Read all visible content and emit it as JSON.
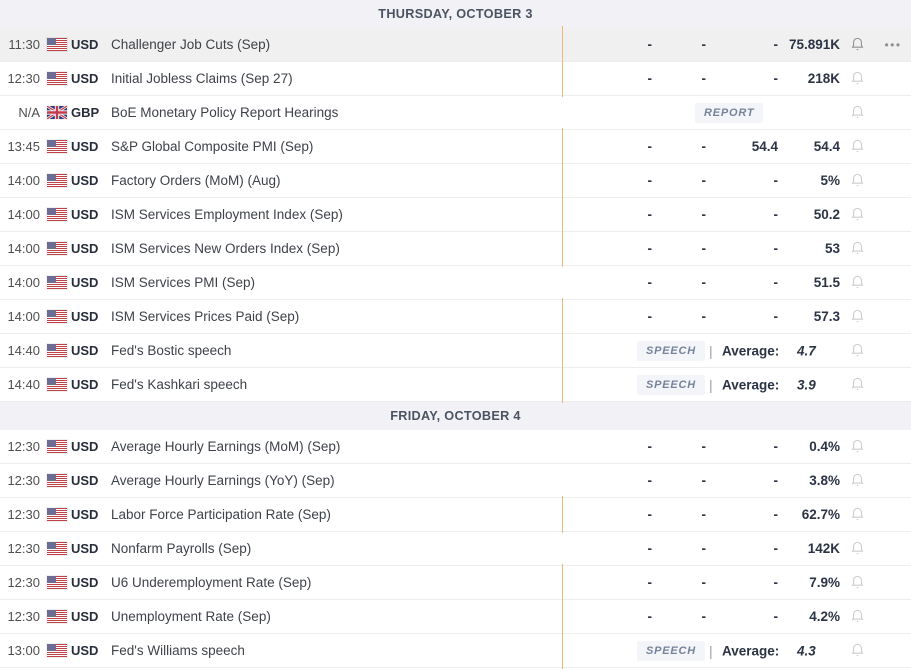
{
  "colors": {
    "impact_medium": "#e0861c",
    "impact_medium_border": "#eeb977",
    "impact_high": "#cf574c",
    "header_bg": "#f2f2f6",
    "badge_text": "#76839a",
    "value_text": "#2b3344"
  },
  "labels": {
    "average": "Average:",
    "speech_badge": "SPEECH",
    "report_badge": "REPORT",
    "menu_dots": "•••"
  },
  "sections": [
    {
      "title": "THURSDAY, OCTOBER 3",
      "rows": [
        {
          "time": "11:30",
          "flag": "us",
          "currency": "USD",
          "event": "Challenger Job Cuts (Sep)",
          "impact": "medium",
          "type": "data",
          "values": [
            "-",
            "-",
            "-",
            "75.891K"
          ],
          "hovered": true,
          "has_menu": true
        },
        {
          "time": "12:30",
          "flag": "us",
          "currency": "USD",
          "event": "Initial Jobless Claims (Sep 27)",
          "impact": "medium",
          "type": "data",
          "values": [
            "-",
            "-",
            "-",
            "218K"
          ]
        },
        {
          "time": "N/A",
          "flag": "gb",
          "currency": "GBP",
          "event": "BoE Monetary Policy Report Hearings",
          "impact": "high",
          "type": "report",
          "badge": "REPORT"
        },
        {
          "time": "13:45",
          "flag": "us",
          "currency": "USD",
          "event": "S&P Global Composite PMI (Sep)",
          "impact": "medium",
          "type": "data",
          "values": [
            "-",
            "-",
            "54.4",
            "54.4"
          ]
        },
        {
          "time": "14:00",
          "flag": "us",
          "currency": "USD",
          "event": "Factory Orders (MoM) (Aug)",
          "impact": "medium",
          "type": "data",
          "values": [
            "-",
            "-",
            "-",
            "5%"
          ]
        },
        {
          "time": "14:00",
          "flag": "us",
          "currency": "USD",
          "event": "ISM Services Employment Index (Sep)",
          "impact": "medium",
          "type": "data",
          "values": [
            "-",
            "-",
            "-",
            "50.2"
          ]
        },
        {
          "time": "14:00",
          "flag": "us",
          "currency": "USD",
          "event": "ISM Services New Orders Index (Sep)",
          "impact": "medium",
          "type": "data",
          "values": [
            "-",
            "-",
            "-",
            "53"
          ]
        },
        {
          "time": "14:00",
          "flag": "us",
          "currency": "USD",
          "event": "ISM Services PMI (Sep)",
          "impact": "high",
          "type": "data",
          "values": [
            "-",
            "-",
            "-",
            "51.5"
          ]
        },
        {
          "time": "14:00",
          "flag": "us",
          "currency": "USD",
          "event": "ISM Services Prices Paid (Sep)",
          "impact": "medium",
          "type": "data",
          "values": [
            "-",
            "-",
            "-",
            "57.3"
          ]
        },
        {
          "time": "14:40",
          "flag": "us",
          "currency": "USD",
          "event": "Fed's Bostic speech",
          "impact": "medium",
          "type": "speech",
          "badge": "SPEECH",
          "average_label": "Average:",
          "average_value": "4.7"
        },
        {
          "time": "14:40",
          "flag": "us",
          "currency": "USD",
          "event": "Fed's Kashkari speech",
          "impact": "medium",
          "type": "speech",
          "badge": "SPEECH",
          "average_label": "Average:",
          "average_value": "3.9"
        }
      ]
    },
    {
      "title": "FRIDAY, OCTOBER 4",
      "rows": [
        {
          "time": "12:30",
          "flag": "us",
          "currency": "USD",
          "event": "Average Hourly Earnings (MoM) (Sep)",
          "impact": "high",
          "type": "data",
          "values": [
            "-",
            "-",
            "-",
            "0.4%"
          ]
        },
        {
          "time": "12:30",
          "flag": "us",
          "currency": "USD",
          "event": "Average Hourly Earnings (YoY) (Sep)",
          "impact": "high",
          "type": "data",
          "values": [
            "-",
            "-",
            "-",
            "3.8%"
          ]
        },
        {
          "time": "12:30",
          "flag": "us",
          "currency": "USD",
          "event": "Labor Force Participation Rate (Sep)",
          "impact": "medium",
          "type": "data",
          "values": [
            "-",
            "-",
            "-",
            "62.7%"
          ]
        },
        {
          "time": "12:30",
          "flag": "us",
          "currency": "USD",
          "event": "Nonfarm Payrolls (Sep)",
          "impact": "high",
          "type": "data",
          "values": [
            "-",
            "-",
            "-",
            "142K"
          ]
        },
        {
          "time": "12:30",
          "flag": "us",
          "currency": "USD",
          "event": "U6 Underemployment Rate (Sep)",
          "impact": "medium",
          "type": "data",
          "values": [
            "-",
            "-",
            "-",
            "7.9%"
          ]
        },
        {
          "time": "12:30",
          "flag": "us",
          "currency": "USD",
          "event": "Unemployment Rate (Sep)",
          "impact": "medium",
          "type": "data",
          "values": [
            "-",
            "-",
            "-",
            "4.2%"
          ]
        },
        {
          "time": "13:00",
          "flag": "us",
          "currency": "USD",
          "event": "Fed's Williams speech",
          "impact": "medium",
          "type": "speech",
          "badge": "SPEECH",
          "average_label": "Average:",
          "average_value": "4.3"
        }
      ]
    }
  ]
}
